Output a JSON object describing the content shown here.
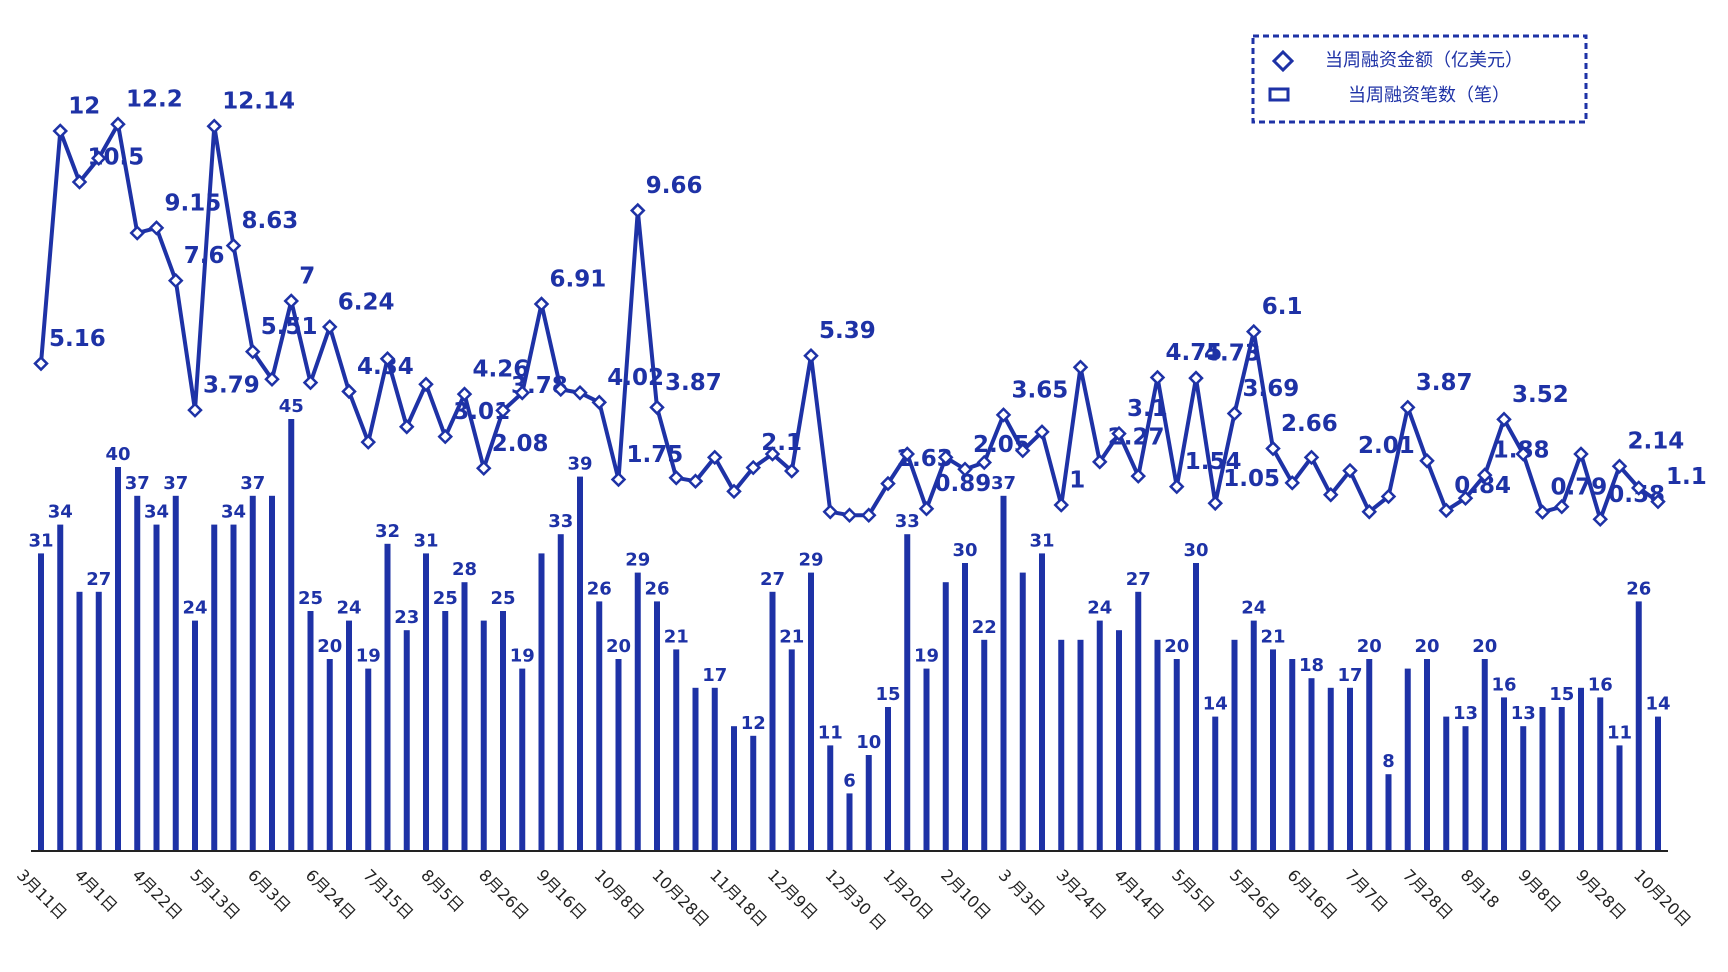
{
  "chart_data": {
    "type": "bar",
    "categories": [
      "3月11日",
      null,
      null,
      "4月1日",
      null,
      null,
      "4月22日",
      null,
      null,
      "5月13日",
      null,
      null,
      "6月3日",
      null,
      null,
      "6月24日",
      null,
      null,
      "7月15日",
      null,
      null,
      "8月5日",
      null,
      null,
      "8月26日",
      null,
      null,
      "9月16日",
      null,
      null,
      "10月8日",
      null,
      null,
      "10月28日",
      null,
      null,
      "11月18日",
      null,
      null,
      "12月9日",
      null,
      null,
      "12月30 日",
      null,
      null,
      "1月20日",
      null,
      null,
      "2月10日",
      null,
      null,
      "3 月3日",
      null,
      null,
      "3月24日",
      null,
      null,
      "4月14日",
      null,
      null,
      "5月5日",
      null,
      null,
      "5月26日",
      null,
      null,
      "6月16日",
      null,
      null,
      "7月7日",
      null,
      null,
      "7月28日",
      null,
      null,
      "8月18",
      null,
      null,
      "9月8日",
      null,
      null,
      "9月28日",
      null,
      null,
      "10月20日"
    ],
    "series": [
      {
        "name": "当周融资金额（亿美元）",
        "type": "line",
        "axis": "y2",
        "color": "#1e32a6",
        "values": [
          5.16,
          12,
          10.5,
          11.2,
          12.2,
          9.0,
          9.15,
          7.6,
          3.79,
          12.14,
          8.63,
          5.51,
          4.7,
          7,
          4.6,
          6.24,
          4.34,
          2.85,
          5.3,
          3.3,
          4.55,
          3.01,
          4.26,
          2.08,
          3.78,
          4.3,
          6.91,
          4.4,
          4.3,
          4.02,
          1.75,
          9.66,
          3.87,
          1.8,
          1.7,
          2.4,
          1.4,
          2.1,
          2.5,
          2.0,
          5.39,
          0.8,
          0.7,
          0.7,
          1.63,
          2.5,
          0.89,
          2.4,
          2.05,
          2.25,
          3.65,
          2.6,
          3.15,
          1,
          5.05,
          2.27,
          3.1,
          1.85,
          4.75,
          1.54,
          4.73,
          1.05,
          3.69,
          6.1,
          2.66,
          1.65,
          2.4,
          1.3,
          2.01,
          0.8,
          1.25,
          3.87,
          2.3,
          0.84,
          1.2,
          1.88,
          3.52,
          2.5,
          0.79,
          0.95,
          2.5,
          0.58,
          2.14,
          1.5,
          1.1
        ],
        "value_labels": [
          "5.16",
          "12",
          "10.5",
          null,
          "12.2",
          null,
          "9.15",
          "7.6",
          "3.79",
          "12.14",
          "8.63",
          "5.51",
          null,
          "7",
          null,
          "6.24",
          "4.34",
          null,
          null,
          null,
          null,
          "3.01",
          "4.26",
          "2.08",
          "3.78",
          null,
          "6.91",
          null,
          null,
          "4.02",
          "1.75",
          "9.66",
          "3.87",
          null,
          null,
          null,
          null,
          "2.1",
          null,
          null,
          "5.39",
          null,
          null,
          null,
          "1.63",
          null,
          "0.89",
          null,
          "2.05",
          null,
          "3.65",
          null,
          null,
          "1",
          null,
          "2.27",
          "3.1",
          null,
          "4.75",
          "1.54",
          "4.73",
          "1.05",
          "3.69",
          "6.1",
          "2.66",
          null,
          null,
          null,
          "2.01",
          null,
          null,
          "3.87",
          null,
          "0.84",
          null,
          "1.88",
          "3.52",
          null,
          "0.79",
          null,
          null,
          "0.58",
          "2.14",
          null,
          "1.1"
        ]
      },
      {
        "name": "当周融资笔数（笔）",
        "type": "bar",
        "axis": "y",
        "color": "#1e32a6",
        "values": [
          31,
          34,
          27,
          27,
          40,
          37,
          34,
          37,
          24,
          34,
          34,
          37,
          37,
          45,
          25,
          20,
          24,
          19,
          32,
          23,
          31,
          25,
          28,
          24,
          25,
          19,
          31,
          33,
          39,
          26,
          20,
          29,
          26,
          21,
          17,
          17,
          13,
          12,
          27,
          21,
          29,
          11,
          6,
          10,
          15,
          33,
          19,
          28,
          30,
          22,
          37,
          29,
          31,
          22,
          22,
          24,
          23,
          27,
          22,
          20,
          30,
          14,
          22,
          24,
          21,
          20,
          18,
          17,
          17,
          20,
          8,
          19,
          20,
          14,
          13,
          20,
          16,
          13,
          15,
          15,
          17,
          16,
          11,
          26,
          14
        ],
        "value_labels": [
          "31",
          "34",
          null,
          "27",
          "40",
          "37",
          "34",
          "37",
          "24",
          null,
          "34",
          "37",
          null,
          "45",
          "25",
          "20",
          "24",
          "19",
          "32",
          "23",
          "31",
          "25",
          "28",
          null,
          "25",
          "19",
          null,
          "33",
          "39",
          "26",
          "20",
          "29",
          "26",
          "21",
          null,
          "17",
          null,
          "12",
          "27",
          "21",
          "29",
          "11",
          "6",
          "10",
          "15",
          "33",
          "19",
          null,
          "30",
          "22",
          "37",
          null,
          "31",
          null,
          null,
          "24",
          null,
          "27",
          null,
          "20",
          "30",
          "14",
          null,
          "24",
          "21",
          null,
          "18",
          null,
          "17",
          "20",
          "8",
          null,
          "20",
          null,
          "13",
          "20",
          "16",
          "13",
          null,
          "15",
          null,
          "16",
          "11",
          "26",
          "14"
        ]
      }
    ],
    "ylim": [
      0,
      50
    ],
    "y2lim": [
      0,
      14
    ],
    "legend": "top-right"
  }
}
